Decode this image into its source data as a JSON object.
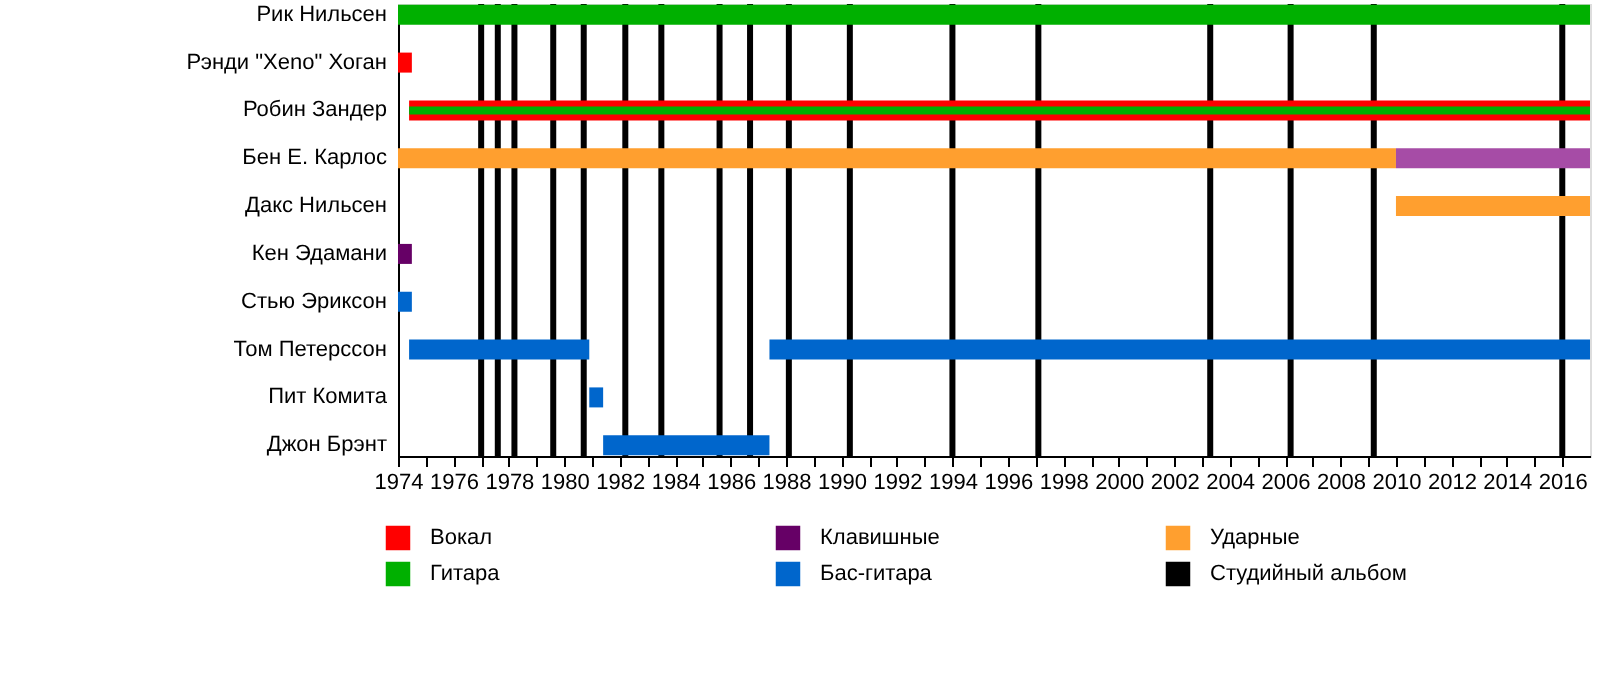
{
  "chart_data": {
    "type": "bar",
    "orientation": "horizontal",
    "legend": "bottom",
    "grid": false,
    "categories": [
      "Рик Нильсен",
      "Рэнди \"Xeno\" Хоган",
      "Робин Зандер",
      "Бен Е. Карлос",
      "Дакс Нильсен",
      "Кен Эдамани",
      "Стью Эриксон",
      "Том Петерссон",
      "Пит Комита",
      "Джон Брэнт"
    ],
    "series": [
      {
        "name": "Вокал",
        "color": "#ff0000",
        "values": [
          null,
          0.5,
          42.6,
          null,
          null,
          null,
          null,
          null,
          null,
          null
        ],
        "base": [
          null,
          1974,
          1974.4,
          null,
          null,
          null,
          null,
          null,
          null,
          null
        ]
      },
      {
        "name": "Гитара",
        "color": "#00b000",
        "values": [
          43,
          null,
          42.6,
          null,
          null,
          null,
          null,
          null,
          null,
          null
        ],
        "base": [
          1974,
          null,
          1974.4,
          null,
          null,
          null,
          null,
          null,
          null,
          null
        ]
      },
      {
        "name": "Клавишные",
        "color": "#660066",
        "values": [
          null,
          null,
          null,
          null,
          null,
          0.5,
          null,
          null,
          null,
          null
        ],
        "base": [
          null,
          null,
          null,
          null,
          null,
          1974,
          null,
          null,
          null,
          null
        ]
      },
      {
        "name": "Бас-гитара",
        "color": "#0066cc",
        "values": [
          null,
          null,
          null,
          null,
          null,
          null,
          0.5,
          6.5,
          0.5,
          6
        ],
        "base": [
          null,
          null,
          null,
          null,
          null,
          null,
          1974,
          1974.4,
          1980.9,
          1981.4
        ]
      },
      {
        "color": "#0066cc",
        "values": [
          null,
          null,
          null,
          null,
          null,
          null,
          null,
          29.6,
          null,
          null
        ],
        "base": [
          null,
          null,
          null,
          null,
          null,
          null,
          null,
          1987.4,
          null,
          null
        ]
      },
      {
        "name": "Ударные",
        "color": "#ff9f2f",
        "values": [
          null,
          null,
          null,
          36,
          7,
          null,
          null,
          null,
          null,
          null
        ],
        "base": [
          null,
          null,
          null,
          1974,
          2010,
          null,
          null,
          null,
          null,
          null
        ]
      },
      {
        "color": "#a64ca6",
        "values": [
          null,
          null,
          null,
          7,
          null,
          null,
          null,
          null,
          null,
          null
        ],
        "base": [
          null,
          null,
          null,
          2010,
          null,
          null,
          null,
          null,
          null,
          null
        ]
      }
    ],
    "xlim": [
      1974,
      2017
    ],
    "xticks": [
      1974,
      {
        "value": 1975,
        "label": null
      },
      1976,
      {
        "value": 1977,
        "label": null
      },
      1978,
      {
        "value": 1979,
        "label": null
      },
      1980,
      {
        "value": 1981,
        "label": null
      },
      1982,
      {
        "value": 1983,
        "label": null
      },
      1984,
      {
        "value": 1985,
        "label": null
      },
      1986,
      {
        "value": 1987,
        "label": null
      },
      1988,
      {
        "value": 1989,
        "label": null
      },
      1990,
      {
        "value": 1991,
        "label": null
      },
      1992,
      {
        "value": 1993,
        "label": null
      },
      1994,
      {
        "value": 1995,
        "label": null
      },
      1996,
      {
        "value": 1997,
        "label": null
      },
      1998,
      {
        "value": 1999,
        "label": null
      },
      2000,
      {
        "value": 2001,
        "label": null
      },
      2002,
      {
        "value": 2003,
        "label": null
      },
      2004,
      {
        "value": 2005,
        "label": null
      },
      2006,
      {
        "value": 2007,
        "label": null
      },
      2008,
      {
        "value": 2009,
        "label": null
      },
      2010,
      {
        "value": 2011,
        "label": null
      },
      2012,
      {
        "value": 2013,
        "label": null
      },
      2014,
      {
        "value": 2015,
        "label": null
      },
      2016
    ],
    "ref_lines": [
      {
        "axis": "x",
        "value": 1977.0,
        "label": "Студийный альбом",
        "color": "#000000"
      },
      {
        "axis": "x",
        "value": 1977.6,
        "label": null,
        "color": "#000000"
      },
      {
        "axis": "x",
        "value": 1978.2,
        "label": null,
        "color": "#000000"
      },
      {
        "axis": "x",
        "value": 1979.6,
        "label": null,
        "color": "#000000"
      },
      {
        "axis": "x",
        "value": 1980.7,
        "label": null,
        "color": "#000000"
      },
      {
        "axis": "x",
        "value": 1982.2,
        "label": null,
        "color": "#000000"
      },
      {
        "axis": "x",
        "value": 1983.5,
        "label": null,
        "color": "#000000"
      },
      {
        "axis": "x",
        "value": 1985.6,
        "label": null,
        "color": "#000000"
      },
      {
        "axis": "x",
        "value": 1986.7,
        "label": null,
        "color": "#000000"
      },
      {
        "axis": "x",
        "value": 1988.1,
        "label": null,
        "color": "#000000"
      },
      {
        "axis": "x",
        "value": 1990.3,
        "label": null,
        "color": "#000000"
      },
      {
        "axis": "x",
        "value": 1994.0,
        "label": null,
        "color": "#000000"
      },
      {
        "axis": "x",
        "value": 1997.1,
        "label": null,
        "color": "#000000"
      },
      {
        "axis": "x",
        "value": 2003.3,
        "label": null,
        "color": "#000000"
      },
      {
        "axis": "x",
        "value": 2006.2,
        "label": null,
        "color": "#000000"
      },
      {
        "axis": "x",
        "value": 2009.2,
        "label": null,
        "color": "#000000"
      },
      {
        "axis": "x",
        "value": 2016.0,
        "label": null,
        "color": "#000000"
      }
    ]
  }
}
